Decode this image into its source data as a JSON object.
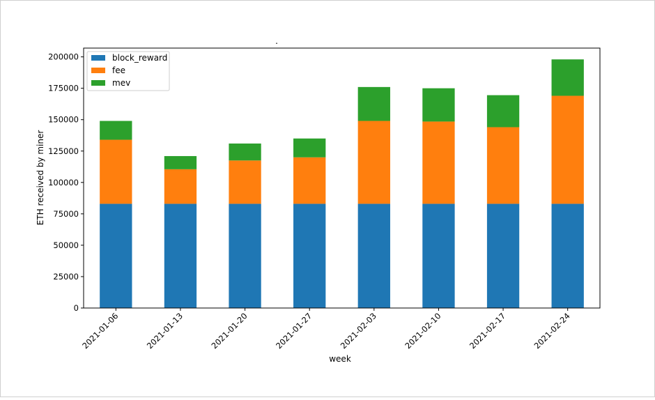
{
  "chart_data": {
    "type": "bar",
    "stacked": true,
    "title": ".",
    "xlabel": "week",
    "ylabel": "ETH received by miner",
    "categories": [
      "2021-01-06",
      "2021-01-13",
      "2021-01-20",
      "2021-01-27",
      "2021-02-03",
      "2021-02-10",
      "2021-02-17",
      "2021-02-24"
    ],
    "ylim": [
      0,
      207000
    ],
    "yticks": [
      0,
      25000,
      50000,
      75000,
      100000,
      125000,
      150000,
      175000,
      200000
    ],
    "legend_position": "upper-left",
    "grid": false,
    "series": [
      {
        "name": "block_reward",
        "color": "#1f77b4",
        "values": [
          83000,
          83000,
          83000,
          83000,
          83000,
          83000,
          83000,
          83000
        ]
      },
      {
        "name": "fee",
        "color": "#ff7f0e",
        "values": [
          51000,
          27500,
          34500,
          37000,
          66000,
          65500,
          61000,
          86000
        ]
      },
      {
        "name": "mev",
        "color": "#2ca02c",
        "values": [
          15000,
          10500,
          13500,
          15000,
          27000,
          26500,
          25500,
          29000
        ]
      }
    ]
  }
}
